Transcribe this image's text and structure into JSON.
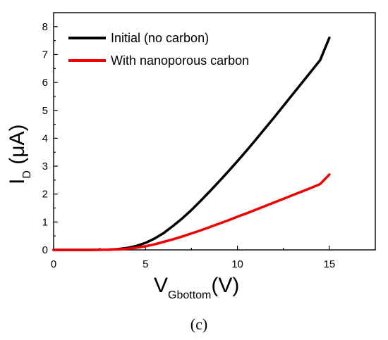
{
  "chart_data": {
    "type": "line",
    "caption": "(c)",
    "xlabel": {
      "main": "V",
      "sub": "Gbottom",
      "unit": "(V)"
    },
    "ylabel": {
      "main": "I",
      "sub": "D",
      "unit": " (μA)"
    },
    "xlim": [
      0,
      17.5
    ],
    "ylim": [
      0,
      8.5
    ],
    "x_ticks": [
      0,
      5,
      10,
      15
    ],
    "y_ticks": [
      0,
      1,
      2,
      3,
      4,
      5,
      6,
      7,
      8
    ],
    "grid": false,
    "legend_position": "top-left",
    "series": [
      {
        "name": "Initial (no carbon)",
        "color": "#000000",
        "x": [
          0,
          1,
          2,
          3,
          3.5,
          4,
          4.5,
          5,
          5.5,
          6,
          6.5,
          7,
          7.5,
          8,
          8.5,
          9,
          9.5,
          10,
          10.5,
          11,
          11.5,
          12,
          12.5,
          13,
          13.5,
          14,
          14.5,
          15
        ],
        "y": [
          0,
          0,
          0,
          0.01,
          0.03,
          0.07,
          0.14,
          0.25,
          0.41,
          0.61,
          0.86,
          1.13,
          1.43,
          1.76,
          2.1,
          2.45,
          2.81,
          3.18,
          3.56,
          3.95,
          4.35,
          4.75,
          5.16,
          5.57,
          5.98,
          6.39,
          6.8,
          7.6
        ]
      },
      {
        "name": "With nanoporous carbon",
        "color": "#ee0000",
        "x": [
          0,
          1,
          2,
          3,
          3.5,
          4,
          4.5,
          5,
          5.5,
          6,
          6.5,
          7,
          7.5,
          8,
          8.5,
          9,
          9.5,
          10,
          10.5,
          11,
          11.5,
          12,
          12.5,
          13,
          13.5,
          14,
          14.5,
          15
        ],
        "y": [
          0,
          0,
          0,
          0.01,
          0.02,
          0.04,
          0.08,
          0.13,
          0.2,
          0.29,
          0.38,
          0.48,
          0.59,
          0.7,
          0.82,
          0.94,
          1.06,
          1.19,
          1.31,
          1.44,
          1.57,
          1.7,
          1.83,
          1.96,
          2.09,
          2.22,
          2.36,
          2.7
        ]
      }
    ]
  }
}
